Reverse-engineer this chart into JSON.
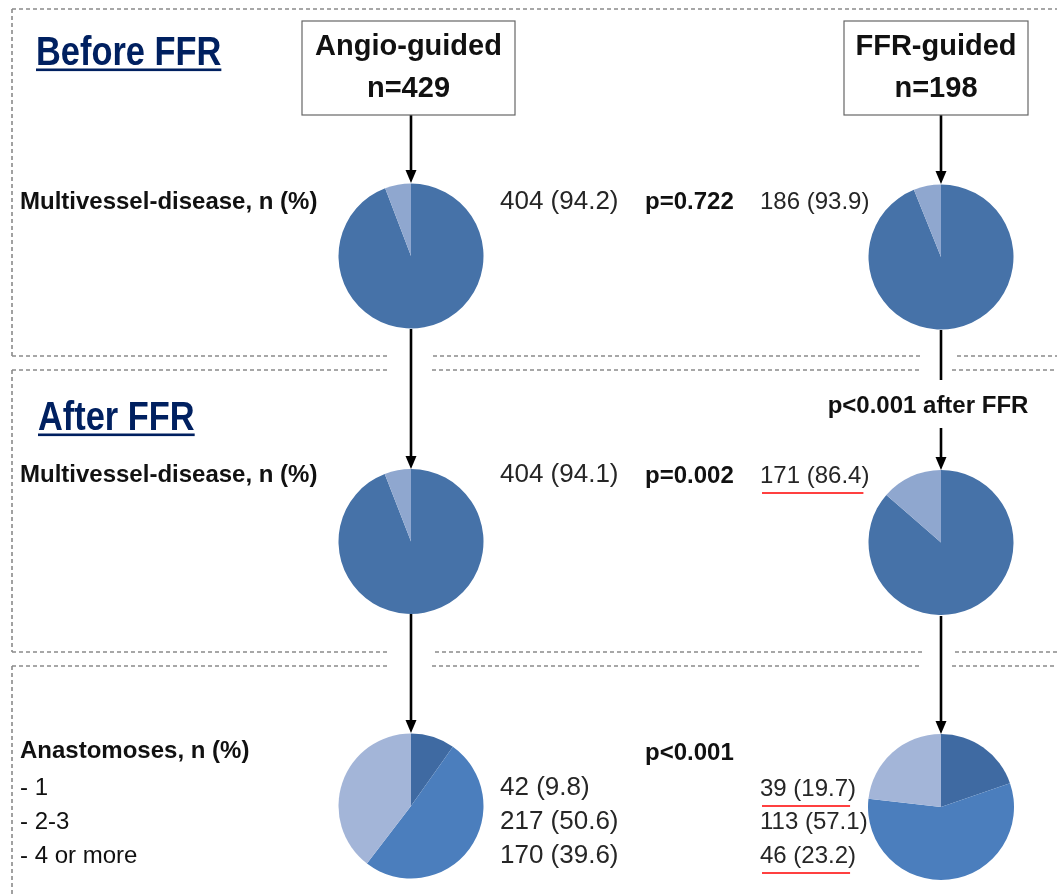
{
  "chart_data": [
    {
      "type": "pie",
      "title": "Angio-guided",
      "subtitle": "n=429",
      "categories": [
        "Multivessel-disease, n (%)",
        null
      ],
      "values": [
        94.2,
        5.8
      ],
      "colors": [
        "#4672a8",
        "#8fa7cf"
      ],
      "value_labels": [
        "404 (94.2)",
        null
      ],
      "annotations": [
        "Before FFR"
      ]
    },
    {
      "type": "pie",
      "title": "FFR-guided",
      "subtitle": "n=198",
      "categories": [
        null,
        null
      ],
      "values": [
        93.9,
        6.1
      ],
      "colors": [
        "#4672a8",
        "#8fa7cf"
      ],
      "value_labels": [
        "186 (93.9)",
        null
      ],
      "annotations": [
        "p=0.722"
      ]
    },
    {
      "type": "pie",
      "categories": [
        "Multivessel-disease, n (%)",
        null
      ],
      "values": [
        94.1,
        5.9
      ],
      "colors": [
        "#4672a8",
        "#8fa7cf"
      ],
      "value_labels": [
        "404 (94.1)",
        null
      ],
      "annotations": [
        "After FFR"
      ]
    },
    {
      "type": "pie",
      "categories": [
        null,
        null
      ],
      "values": [
        86.4,
        13.6
      ],
      "colors": [
        "#4672a8",
        "#8fa7cf"
      ],
      "value_labels": [
        "171 (86.4)",
        null
      ],
      "annotations": [
        "p=0.002",
        "p<0.001 after FFR"
      ]
    },
    {
      "type": "pie",
      "title": "Anastomoses, n (%)",
      "categories": [
        null,
        null,
        null
      ],
      "values": [
        9.8,
        50.6,
        39.6
      ],
      "colors": [
        "#3f6aa2",
        "#4b7ebd",
        "#a3b5d8"
      ],
      "annotations": [
        "- 1",
        "- 2-3",
        "- 4 or more",
        "42 (9.8)",
        "217 (50.6)",
        "170 (39.6)"
      ]
    },
    {
      "type": "pie",
      "categories": [
        null,
        null,
        null
      ],
      "values": [
        19.7,
        57.1,
        23.2
      ],
      "colors": [
        "#3f6aa2",
        "#4b7ebd",
        "#a3b5d8"
      ],
      "annotations": [
        "p<0.001",
        "39 (19.7)",
        "113 (57.1)",
        "46 (23.2)"
      ]
    }
  ]
}
